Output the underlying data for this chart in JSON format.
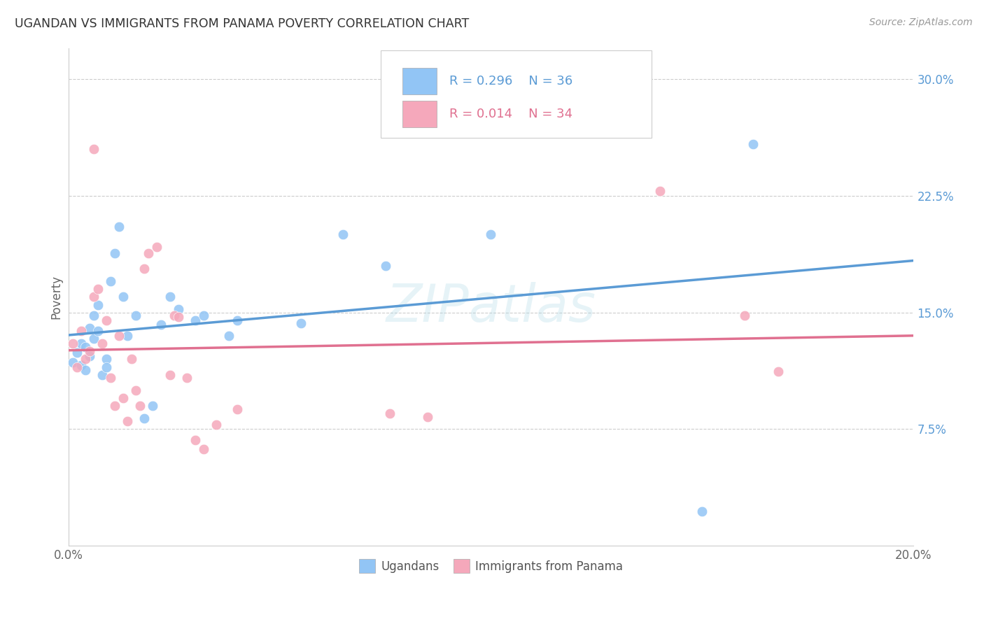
{
  "title": "UGANDAN VS IMMIGRANTS FROM PANAMA POVERTY CORRELATION CHART",
  "source": "Source: ZipAtlas.com",
  "ylabel": "Poverty",
  "watermark": "ZIPatlas",
  "xlim": [
    0.0,
    0.2
  ],
  "ylim": [
    0.0,
    0.32
  ],
  "xticks": [
    0.0,
    0.04,
    0.08,
    0.12,
    0.16,
    0.2
  ],
  "yticks": [
    0.075,
    0.15,
    0.225,
    0.3
  ],
  "ytick_labels": [
    "7.5%",
    "15.0%",
    "22.5%",
    "30.0%"
  ],
  "xtick_labels": [
    "0.0%",
    "",
    "",
    "",
    "",
    "20.0%"
  ],
  "legend_r_blue": "R = 0.296",
  "legend_n_blue": "N = 36",
  "legend_r_pink": "R = 0.014",
  "legend_n_pink": "N = 34",
  "blue_color": "#92C5F5",
  "pink_color": "#F5A8BB",
  "blue_line_color": "#5B9BD5",
  "pink_line_color": "#E07090",
  "background_color": "#FFFFFF",
  "grid_color": "#CCCCCC",
  "title_color": "#333333",
  "blue_ugandans_x": [
    0.001,
    0.002,
    0.003,
    0.003,
    0.004,
    0.004,
    0.005,
    0.005,
    0.006,
    0.006,
    0.007,
    0.007,
    0.008,
    0.009,
    0.009,
    0.01,
    0.011,
    0.012,
    0.013,
    0.014,
    0.016,
    0.018,
    0.02,
    0.022,
    0.024,
    0.026,
    0.03,
    0.032,
    0.038,
    0.04,
    0.055,
    0.065,
    0.075,
    0.1,
    0.15,
    0.162
  ],
  "blue_ugandans_y": [
    0.118,
    0.124,
    0.13,
    0.116,
    0.113,
    0.128,
    0.14,
    0.122,
    0.148,
    0.133,
    0.155,
    0.138,
    0.11,
    0.12,
    0.115,
    0.17,
    0.188,
    0.205,
    0.16,
    0.135,
    0.148,
    0.082,
    0.09,
    0.142,
    0.16,
    0.152,
    0.145,
    0.148,
    0.135,
    0.145,
    0.143,
    0.2,
    0.18,
    0.2,
    0.022,
    0.258
  ],
  "pink_panama_x": [
    0.001,
    0.002,
    0.003,
    0.004,
    0.005,
    0.006,
    0.006,
    0.007,
    0.008,
    0.009,
    0.01,
    0.011,
    0.012,
    0.013,
    0.014,
    0.015,
    0.016,
    0.017,
    0.018,
    0.019,
    0.021,
    0.024,
    0.025,
    0.026,
    0.028,
    0.03,
    0.032,
    0.035,
    0.04,
    0.076,
    0.085,
    0.14,
    0.16,
    0.168
  ],
  "pink_panama_y": [
    0.13,
    0.115,
    0.138,
    0.12,
    0.125,
    0.255,
    0.16,
    0.165,
    0.13,
    0.145,
    0.108,
    0.09,
    0.135,
    0.095,
    0.08,
    0.12,
    0.1,
    0.09,
    0.178,
    0.188,
    0.192,
    0.11,
    0.148,
    0.147,
    0.108,
    0.068,
    0.062,
    0.078,
    0.088,
    0.085,
    0.083,
    0.228,
    0.148,
    0.112
  ]
}
